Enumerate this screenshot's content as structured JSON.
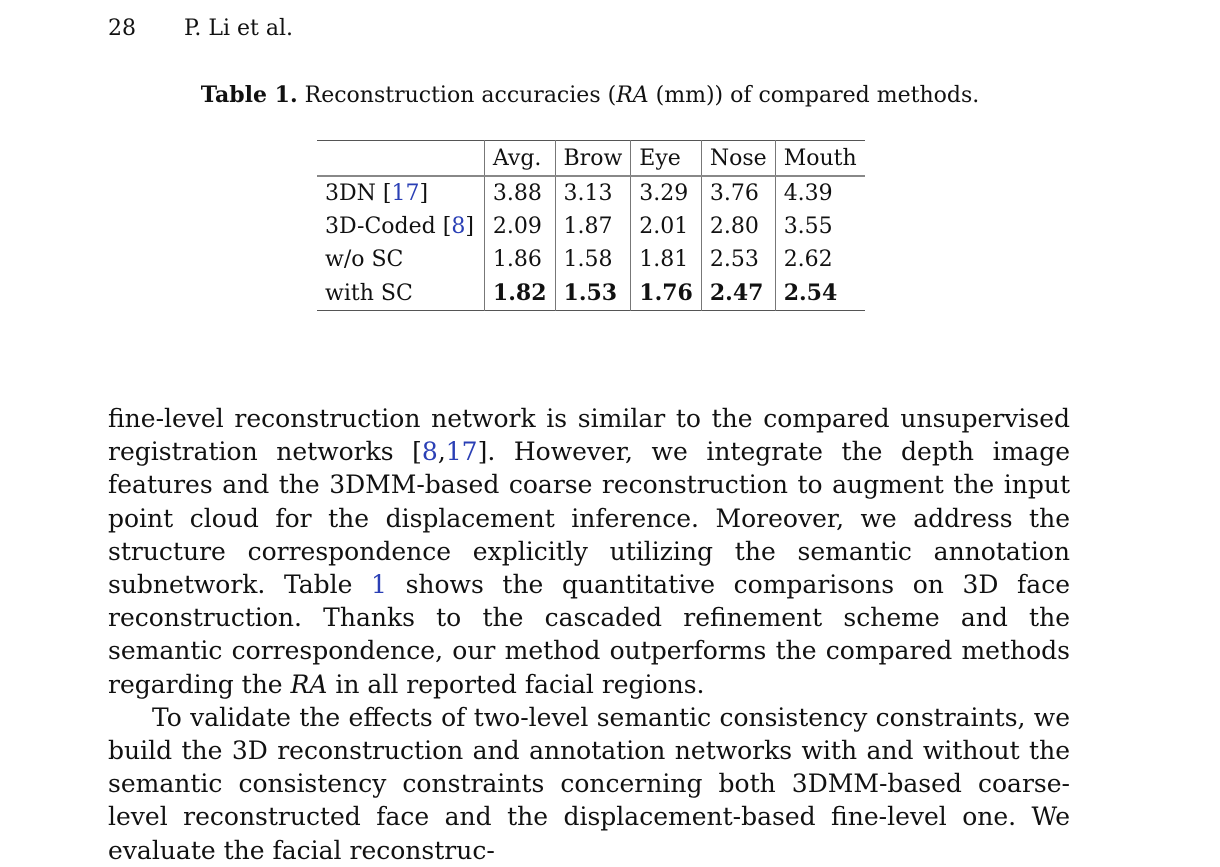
{
  "header": {
    "page_number": "28",
    "authors": "P. Li et al."
  },
  "table": {
    "caption_label": "Table 1.",
    "caption_pre": " Reconstruction accuracies (",
    "caption_ra": "RA",
    "caption_post": " (mm)) of compared methods.",
    "columns": [
      "",
      "Avg.",
      "Brow",
      "Eye",
      "Nose",
      "Mouth"
    ],
    "rows": [
      {
        "method": "3DN",
        "ref": "17",
        "values": [
          "3.88",
          "3.13",
          "3.29",
          "3.76",
          "4.39"
        ]
      },
      {
        "method": "3D-Coded",
        "ref": "8",
        "values": [
          "2.09",
          "1.87",
          "2.01",
          "2.80",
          "3.55"
        ]
      },
      {
        "method": "w/o SC",
        "ref": "",
        "values": [
          "1.86",
          "1.58",
          "1.81",
          "2.53",
          "2.62"
        ]
      },
      {
        "method": "with SC",
        "ref": "",
        "values": [
          "1.82",
          "1.53",
          "1.76",
          "2.47",
          "2.54"
        ]
      }
    ]
  },
  "paragraph1": {
    "t1": "fine-level reconstruction network is similar to the compared unsupervised registration networks [",
    "ref_a": "8",
    "t2": ",",
    "ref_b": "17",
    "t3": "]. However, we integrate the depth image features and the 3DMM-based coarse reconstruction to augment the input point cloud for the displacement inference. Moreover, we address the structure correspondence explicitly utilizing the semantic annotation subnetwork. Table ",
    "ref_table": "1",
    "t4": " shows the quantitative comparisons on 3D face reconstruction. Thanks to the cascaded refinement scheme and the semantic correspondence, our method outperforms the compared methods regarding the ",
    "ra": "RA",
    "t5": " in all reported facial regions."
  },
  "paragraph2": {
    "text": "To validate the effects of two-level semantic consistency constraints, we build the 3D reconstruction and annotation networks with and without the semantic consistency constraints concerning both 3DMM-based coarse-level reconstructed face and the displacement-based fine-level one. We evaluate the facial reconstruc-"
  }
}
